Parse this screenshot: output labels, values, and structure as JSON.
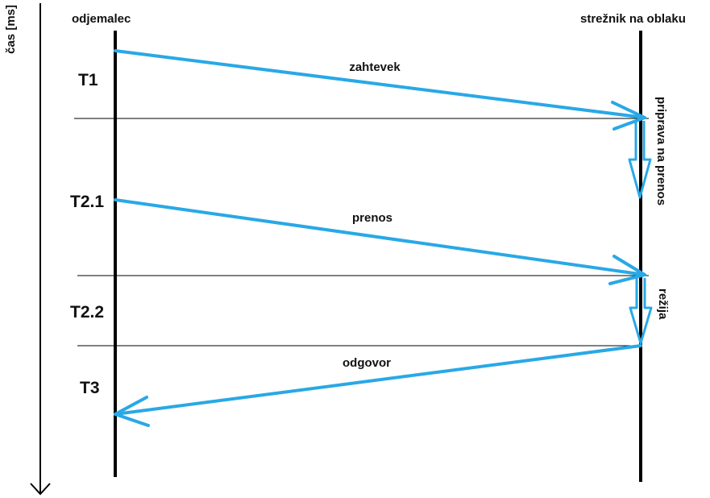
{
  "time_axis": {
    "label": "čas [ms]"
  },
  "participants": {
    "client": "odjemalec",
    "server": "strežnik na oblaku"
  },
  "phases": [
    "T1",
    "T2.1",
    "T2.2",
    "T3"
  ],
  "messages": {
    "request": "zahtevek",
    "transfer": "prenos",
    "response": "odgovor"
  },
  "server_activities": {
    "preparation": "priprava na prenos",
    "overhead": "režija"
  },
  "colors": {
    "arrow": "#29a8e6",
    "lifeline": "#000000"
  }
}
